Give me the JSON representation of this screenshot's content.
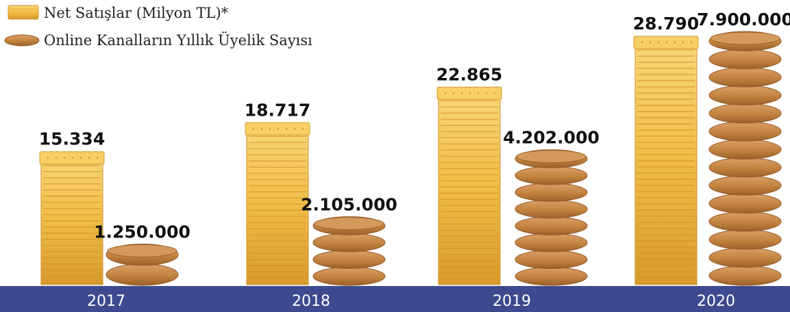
{
  "chart_data": {
    "type": "bar",
    "categories": [
      "2017",
      "2018",
      "2019",
      "2020"
    ],
    "series": [
      {
        "name": "Net Satışlar (Milyon TL)*",
        "values": [
          15334,
          18717,
          22865,
          28790
        ],
        "labels": [
          "15.334",
          "18.717",
          "22.865",
          "28.790"
        ],
        "icon": "cracker-stack-icon"
      },
      {
        "name": "Online Kanalların Yıllık Üyelik Sayısı",
        "values": [
          1250000,
          2105000,
          4202000,
          7900000
        ],
        "labels": [
          "1.250.000",
          "2.105.000",
          "4.202.000",
          "7.900.000"
        ],
        "icon": "cookie-stack-icon"
      }
    ],
    "legend_position": "top-left",
    "grid": false
  },
  "colors": {
    "axis_band": "#3d4a8f",
    "cracker": "#f2c14e",
    "cracker_dark": "#d9a033",
    "cookie": "#c88a4a",
    "cookie_dark": "#a4672f"
  }
}
